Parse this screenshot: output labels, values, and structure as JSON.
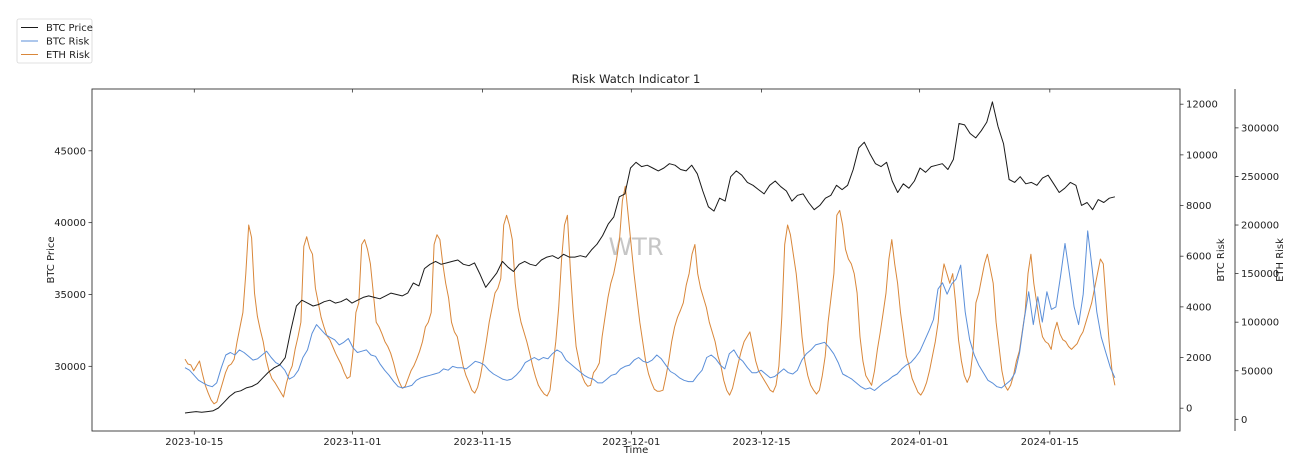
{
  "chart_data": {
    "type": "line",
    "title": "Risk Watch Indicator 1",
    "xlabel": "Time",
    "watermark": "WTR",
    "x_start": "2023-10-14",
    "x_step_days": 1,
    "xlim": [
      "2023-10-04",
      "2024-01-29"
    ],
    "x_ticks": [
      "2023-10-15",
      "2023-11-01",
      "2023-11-15",
      "2023-12-01",
      "2023-12-15",
      "2024-01-01",
      "2024-01-15"
    ],
    "legend": {
      "placement": "top-left outside",
      "entries": [
        "BTC Price",
        "BTC Risk",
        "ETH Risk"
      ]
    },
    "axes": {
      "left": {
        "label": "BTC Price",
        "ylim": [
          25500,
          49300
        ],
        "ticks": [
          30000,
          35000,
          40000,
          45000
        ]
      },
      "right1": {
        "label": "BTC Risk",
        "ylim": [
          -900,
          12600
        ],
        "ticks": [
          0,
          2000,
          4000,
          6000,
          8000,
          10000,
          12000
        ]
      },
      "right2": {
        "label": "ETH Risk",
        "ylim": [
          -12000,
          340000
        ],
        "ticks": [
          0,
          50000,
          100000,
          150000,
          200000,
          250000,
          300000
        ]
      }
    },
    "series": [
      {
        "name": "BTC Price",
        "axis": "left",
        "color": "#1a1a1a",
        "values": [
          26750,
          26800,
          26850,
          26800,
          26850,
          26900,
          27100,
          27500,
          27900,
          28200,
          28300,
          28500,
          28600,
          28800,
          29200,
          29600,
          29900,
          30100,
          30600,
          32500,
          34200,
          34600,
          34400,
          34200,
          34300,
          34500,
          34600,
          34400,
          34500,
          34700,
          34400,
          34600,
          34800,
          34900,
          34800,
          34700,
          34900,
          35100,
          35000,
          34900,
          35100,
          35800,
          35600,
          36800,
          37100,
          37300,
          37100,
          37200,
          37300,
          37400,
          37100,
          37000,
          37200,
          36400,
          35500,
          36000,
          36500,
          37300,
          36900,
          36600,
          37100,
          37300,
          37100,
          37000,
          37400,
          37600,
          37700,
          37500,
          37800,
          37600,
          37600,
          37700,
          37600,
          38100,
          38500,
          39100,
          39900,
          40400,
          41800,
          42000,
          43800,
          44200,
          43900,
          44000,
          43800,
          43600,
          43800,
          44100,
          44000,
          43700,
          43600,
          44000,
          43400,
          42200,
          41100,
          40800,
          41700,
          41500,
          43200,
          43600,
          43300,
          42800,
          42600,
          42300,
          42000,
          42600,
          42900,
          42500,
          42200,
          41500,
          41900,
          42000,
          41400,
          40900,
          41200,
          41700,
          41900,
          42600,
          42300,
          42600,
          43700,
          45200,
          45600,
          44800,
          44100,
          43900,
          44200,
          42900,
          42100,
          42700,
          42400,
          42900,
          43800,
          43500,
          43900,
          44000,
          44100,
          43700,
          44400,
          46900,
          46800,
          46200,
          45900,
          46400,
          47000,
          48400,
          46700,
          45500,
          43000,
          42800,
          43200,
          42700,
          42800,
          42600,
          43100,
          43300,
          42700,
          42100,
          42400,
          42800,
          42600,
          41200,
          41400,
          40900,
          41600,
          41400,
          41700,
          41800
        ]
      },
      {
        "name": "BTC Risk",
        "axis": "right1",
        "color": "#5b8fd9",
        "values": [
          1600,
          1500,
          1300,
          1100,
          1000,
          900,
          850,
          1000,
          1600,
          2100,
          2200,
          2100,
          2300,
          2200,
          2050,
          1900,
          1950,
          2100,
          2250,
          2000,
          1800,
          1700,
          1500,
          1150,
          1250,
          1500,
          2000,
          2300,
          2950,
          3300,
          3100,
          2900,
          2800,
          2700,
          2500,
          2600,
          2750,
          2400,
          2200,
          2250,
          2300,
          2100,
          2050,
          1750,
          1500,
          1300,
          1050,
          850,
          800,
          850,
          900,
          1100,
          1200,
          1250,
          1300,
          1350,
          1400,
          1550,
          1500,
          1650,
          1600,
          1600,
          1550,
          1700,
          1850,
          1800,
          1700,
          1500,
          1350,
          1250,
          1150,
          1100,
          1150,
          1300,
          1500,
          1800,
          1900,
          2000,
          1900,
          2000,
          1950,
          2150,
          2300,
          2200,
          1900,
          1750,
          1600,
          1450,
          1300,
          1200,
          1150,
          1000,
          1000,
          1150,
          1300,
          1350,
          1550,
          1650,
          1700,
          1900,
          2000,
          1850,
          1800,
          1900,
          2100,
          1950,
          1700,
          1450,
          1350,
          1200,
          1100,
          1050,
          1050,
          1300,
          1500,
          2000,
          2100,
          1950,
          1700,
          1550,
          2150,
          2300,
          2000,
          1850,
          1600,
          1400,
          1400,
          1500,
          1350,
          1200,
          1250,
          1400,
          1550,
          1400,
          1350,
          1500,
          1900,
          2150,
          2300,
          2500,
          2550,
          2600,
          2400,
          2150,
          1800,
          1350,
          1250,
          1150,
          1000,
          850,
          750,
          800,
          700,
          850,
          1000,
          1100,
          1250,
          1350,
          1550,
          1700,
          1800,
          2000,
          2250,
          2650,
          3050,
          3500,
          4700,
          4950,
          4500,
          4900,
          5100,
          5650,
          3800,
          2700,
          2100,
          1700,
          1400,
          1100,
          1000,
          850,
          800,
          950,
          1100,
          1400,
          2200,
          3500,
          4600,
          3300,
          4400,
          3400,
          4600,
          3900,
          4000,
          5200,
          6500,
          5300,
          4000,
          3300,
          4500,
          7000,
          5500,
          3800,
          2800,
          2200,
          1600,
          1200
        ]
      },
      {
        "name": "ETH Risk",
        "axis": "right2",
        "color": "#d9873a",
        "values": [
          62000,
          57000,
          56000,
          50000,
          55000,
          60000,
          47000,
          35000,
          27000,
          20000,
          16000,
          18000,
          28000,
          38000,
          48000,
          55000,
          57000,
          62000,
          80000,
          95000,
          110000,
          150000,
          200000,
          187000,
          130000,
          106000,
          92000,
          80000,
          62000,
          50000,
          42000,
          38000,
          33000,
          28000,
          23000,
          37000,
          48000,
          55000,
          72000,
          85000,
          100000,
          178000,
          188000,
          176000,
          170000,
          135000,
          120000,
          105000,
          95000,
          86000,
          82000,
          75000,
          68000,
          62000,
          56000,
          48000,
          42000,
          44000,
          70000,
          110000,
          120000,
          180000,
          185000,
          175000,
          160000,
          130000,
          100000,
          95000,
          88000,
          80000,
          75000,
          68000,
          58000,
          46000,
          38000,
          32000,
          34000,
          42000,
          50000,
          55000,
          62000,
          70000,
          80000,
          95000,
          100000,
          110000,
          180000,
          190000,
          185000,
          160000,
          140000,
          125000,
          100000,
          90000,
          85000,
          70000,
          55000,
          45000,
          38000,
          30000,
          27000,
          33000,
          45000,
          62000,
          80000,
          100000,
          115000,
          130000,
          135000,
          145000,
          200000,
          210000,
          200000,
          185000,
          140000,
          115000,
          100000,
          90000,
          80000,
          68000,
          55000,
          44000,
          35000,
          30000,
          26000,
          24000,
          30000,
          55000,
          80000,
          115000,
          165000,
          200000,
          210000,
          155000,
          110000,
          75000,
          60000,
          45000,
          38000,
          34000,
          35000,
          48000,
          52000,
          58000,
          85000,
          105000,
          125000,
          140000,
          150000,
          165000,
          185000,
          225000,
          240000,
          210000,
          180000,
          150000,
          125000,
          100000,
          80000,
          60000,
          47000,
          38000,
          31000,
          29000,
          29000,
          30000,
          44000,
          60000,
          80000,
          95000,
          105000,
          112000,
          120000,
          138000,
          150000,
          170000,
          180000,
          150000,
          135000,
          125000,
          115000,
          100000,
          90000,
          80000,
          65000,
          55000,
          40000,
          30000,
          25000,
          32000,
          45000,
          58000,
          70000,
          80000,
          85000,
          90000,
          75000,
          60000,
          50000,
          45000,
          40000,
          35000,
          30000,
          28000,
          35000,
          55000,
          105000,
          180000,
          200000,
          190000,
          170000,
          150000,
          120000,
          85000,
          60000,
          45000,
          35000,
          30000,
          26000,
          30000,
          45000,
          65000,
          100000,
          125000,
          150000,
          210000,
          215000,
          200000,
          175000,
          165000,
          160000,
          150000,
          130000,
          85000,
          60000,
          45000,
          40000,
          35000,
          50000,
          72000,
          90000,
          110000,
          130000,
          165000,
          185000,
          160000,
          140000,
          110000,
          88000,
          65000,
          55000,
          42000,
          35000,
          28000,
          25000,
          30000,
          38000,
          50000,
          65000,
          80000,
          100000,
          140000,
          160000,
          150000,
          140000,
          150000,
          120000,
          82000,
          60000,
          45000,
          38000,
          45000,
          70000,
          120000,
          130000,
          145000,
          160000,
          170000,
          155000,
          140000,
          100000,
          75000,
          50000,
          35000,
          30000,
          35000,
          45000,
          60000,
          70000,
          90000,
          110000,
          150000,
          170000,
          140000,
          120000,
          100000,
          85000,
          80000,
          78000,
          72000,
          90000,
          100000,
          88000,
          82000,
          80000,
          75000,
          72000,
          75000,
          78000,
          85000,
          90000,
          100000,
          110000,
          120000,
          135000,
          150000,
          165000,
          160000,
          120000,
          80000,
          50000,
          35000
        ]
      }
    ]
  }
}
